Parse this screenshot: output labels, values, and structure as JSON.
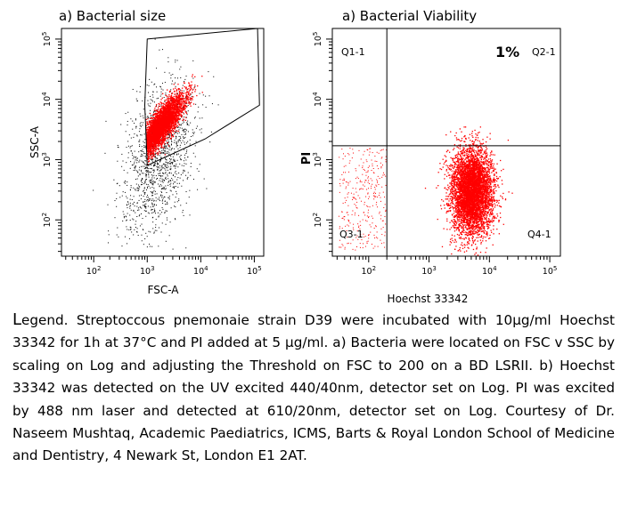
{
  "chart_data": [
    {
      "type": "scatter",
      "title": "a) Bacterial size",
      "xlabel": "FSC-A",
      "ylabel": "SSC-A",
      "scale": "log",
      "xticks": [
        "10^2",
        "10^3",
        "10^4",
        "10^5"
      ],
      "yticks": [
        "10^2",
        "10^3",
        "10^4",
        "10^5"
      ],
      "xlim": [
        25,
        150000
      ],
      "ylim": [
        25,
        150000
      ],
      "gate": {
        "shape": "polygon",
        "points": [
          [
            1000,
            100000
          ],
          [
            115000,
            150000
          ],
          [
            125000,
            8000
          ],
          [
            12000,
            2200
          ],
          [
            1000,
            800
          ],
          [
            900,
            8000
          ]
        ]
      },
      "populations": [
        {
          "name": "gated events",
          "color": "#ff0000",
          "center": [
            1700,
            3500
          ],
          "note": "dense red population inside gate"
        },
        {
          "name": "ungated events",
          "color": "#000000",
          "note": "sparse black events around and below gate"
        }
      ]
    },
    {
      "type": "scatter",
      "title": "a) Bacterial Viability",
      "xlabel": "Hoechst 33342",
      "ylabel": "PI",
      "scale": "log",
      "xticks": [
        "10^2",
        "10^3",
        "10^4",
        "10^5"
      ],
      "yticks": [
        "10^2",
        "10^3",
        "10^4",
        "10^5"
      ],
      "xlim": [
        25,
        150000
      ],
      "ylim": [
        25,
        150000
      ],
      "quadrant_gates": {
        "x": 200,
        "y": 1700
      },
      "quadrants": [
        {
          "name": "Q1-1",
          "position": "top-left"
        },
        {
          "name": "Q2-1",
          "position": "top-right",
          "value": "1%"
        },
        {
          "name": "Q3-1",
          "position": "bottom-left"
        },
        {
          "name": "Q4-1",
          "position": "bottom-right"
        }
      ],
      "populations": [
        {
          "name": "Hoechst+ PI-",
          "color": "#ff0000",
          "center": [
            5000,
            300
          ],
          "note": "dense red population in Q4-1"
        }
      ]
    }
  ],
  "panels": {
    "left_title": "a) Bacterial size",
    "right_title": "a) Bacterial Viability",
    "left_xlabel": "FSC-A",
    "left_ylabel": "SSC-A",
    "right_xlabel": "Hoechst 33342",
    "right_ylabel": "PI",
    "q1": "Q1-1",
    "q2": "Q2-1",
    "q3": "Q3-1",
    "q4": "Q4-1",
    "q2_value": "1%"
  },
  "legend": {
    "lead": "L",
    "text": "egend. Streptoccous pnemonaie strain D39 were incubated with 10µg/ml Hoechst 33342 for 1h at 37°C and PI added at 5 µg/ml. a) Bacteria were located on FSC v SSC by scaling on Log and adjusting the Threshold on FSC to 200 on a BD LSRII. b) Hoechst 33342 was detected on the UV excited 440/40nm, detector set on Log. PI was excited by 488 nm laser and detected at 610/20nm, detector set on Log. Courtesy of Dr. Naseem Mushtaq, Academic Paediatrics, ICMS, Barts & Royal London School of Medicine and Dentistry, 4 Newark St, London E1 2AT."
  },
  "colors": {
    "events": "#ff0000",
    "debris": "#000000",
    "gate": "#000000"
  }
}
